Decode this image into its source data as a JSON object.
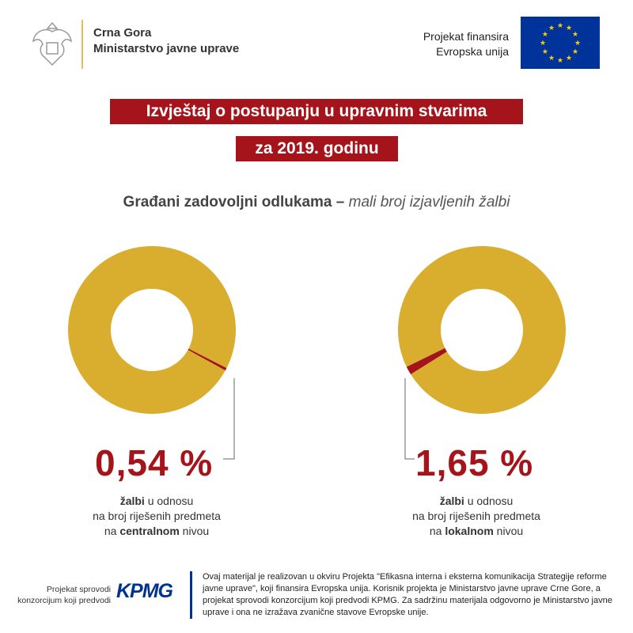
{
  "header": {
    "org_line1": "Crna Gora",
    "org_line2": "Ministarstvo javne uprave",
    "eu_line1": "Projekat finansira",
    "eu_line2": "Evropska unija"
  },
  "title": {
    "line1": "Izvještaj o postupanju u upravnim stvarima",
    "line2": "za 2019. godinu"
  },
  "subtitle": {
    "bold": "Građani zadovoljni odlukama –",
    "italic": "mali broj izjavljenih žalbi"
  },
  "colors": {
    "gold": "#d9ae2e",
    "red": "#a6141b",
    "eu_blue": "#003399",
    "kpmg_blue": "#00338d"
  },
  "chart_data": [
    {
      "type": "pie",
      "style": "donut",
      "value_label": "0,54 %",
      "slices": [
        {
          "value": 0.54,
          "color": "#a6141b"
        },
        {
          "value": 99.46,
          "color": "#d9ae2e"
        }
      ],
      "caption": {
        "b1": "žalbi",
        "t1": " u odnosu",
        "line2": "na broj riješenih predmeta",
        "t3a": "na ",
        "b3": "centralnom",
        "t3b": " nivou"
      }
    },
    {
      "type": "pie",
      "style": "donut",
      "value_label": "1,65 %",
      "slices": [
        {
          "value": 1.65,
          "color": "#a6141b"
        },
        {
          "value": 98.35,
          "color": "#d9ae2e"
        }
      ],
      "caption": {
        "b1": "žalbi",
        "t1": " u odnosu",
        "line2": "na broj riješenih predmeta",
        "t3a": "na ",
        "b3": "lokalnom",
        "t3b": " nivou"
      }
    }
  ],
  "footer": {
    "implementer_line1": "Projekat sprovodi",
    "implementer_line2": "konzorcijum koji predvodi",
    "kpmg_logo": "KPMG",
    "disclaimer": "Ovaj materijal je realizovan u okviru Projekta \"Efikasna interna i eksterna komunikacija Strategije reforme javne uprave\", koji finansira Evropska unija. Korisnik projekta je Ministarstvo javne uprave Crne Gore, a projekat sprovodi konzorcijum koji predvodi KPMG. Za sadržinu materijala odgovorno je Ministarstvo javne uprave i ona ne izražava zvanične stavove Evropske unije."
  }
}
